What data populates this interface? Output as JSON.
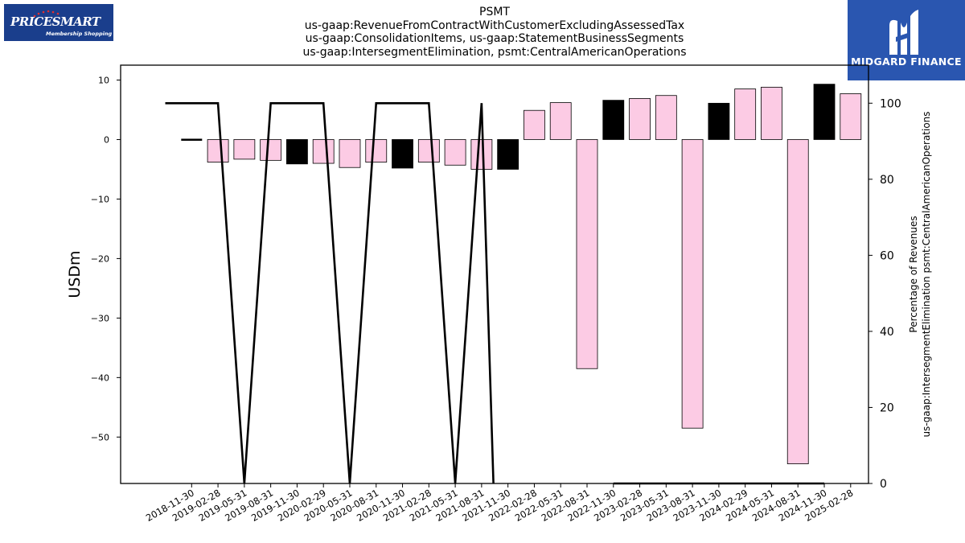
{
  "header": {
    "title_lines": [
      "PSMT",
      "us-gaap:RevenueFromContractWithCustomerExcludingAssessedTax",
      "us-gaap:ConsolidationItems, us-gaap:StatementBusinessSegments",
      "us-gaap:IntersegmentElimination, psmt:CentralAmericanOperations"
    ]
  },
  "logos": {
    "left": {
      "brand": "PRICESMART",
      "tagline": "Membership Shopping",
      "bg_color": "#1a3e8c"
    },
    "right": {
      "name": "MIDGARD FINANCE",
      "bg_color": "#2a56b0"
    }
  },
  "chart_data": {
    "type": "bar",
    "categories": [
      "2018-11-30",
      "2019-02-28",
      "2019-05-31",
      "2019-08-31",
      "2019-11-30",
      "2020-02-29",
      "2020-05-31",
      "2020-08-31",
      "2020-11-30",
      "2021-02-28",
      "2021-05-31",
      "2021-08-31",
      "2021-11-30",
      "2022-02-28",
      "2022-05-31",
      "2022-08-31",
      "2022-11-30",
      "2023-02-28",
      "2023-05-31",
      "2023-08-31",
      "2023-11-30",
      "2024-02-29",
      "2024-05-31",
      "2024-08-31",
      "2024-11-30",
      "2025-02-28"
    ],
    "values": [
      -0.2,
      -3.8,
      -3.3,
      -3.5,
      -4.1,
      -4.0,
      -4.7,
      -3.8,
      -4.8,
      -3.8,
      -4.3,
      -5.0,
      -5.0,
      4.9,
      6.2,
      -38.5,
      6.6,
      6.9,
      7.4,
      -48.5,
      6.1,
      8.5,
      8.8,
      -54.5,
      9.3,
      7.7
    ],
    "bar_styles": [
      "black-line",
      "pink",
      "pink",
      "pink",
      "black",
      "pink",
      "pink",
      "pink",
      "black",
      "pink",
      "pink",
      "pink",
      "black",
      "pink",
      "pink",
      "pink",
      "black",
      "pink",
      "pink",
      "pink",
      "black",
      "pink",
      "pink",
      "pink",
      "black",
      "pink"
    ],
    "ylabel": "USDm",
    "ylim": [
      -57.8,
      12.5
    ],
    "yticks": [
      10,
      0,
      -10,
      -20,
      -30,
      -40,
      -50
    ],
    "line_series": {
      "values": [
        100,
        100,
        100,
        0,
        100,
        100,
        100,
        0,
        100,
        100,
        100,
        0,
        100,
        null,
        null,
        0,
        null,
        0,
        0,
        0,
        0,
        0,
        0,
        0,
        0,
        0
      ],
      "ylabel_lines": [
        "Percentage of Revenues",
        "us-gaap:IntersegmentElimination psmt:CentralAmericanOperations"
      ],
      "ylim": [
        0,
        110
      ],
      "yticks": [
        0,
        20,
        40,
        60,
        80,
        100
      ]
    },
    "colors": {
      "pink": "#fccbe4",
      "black": "#000000",
      "line": "#000000"
    }
  }
}
